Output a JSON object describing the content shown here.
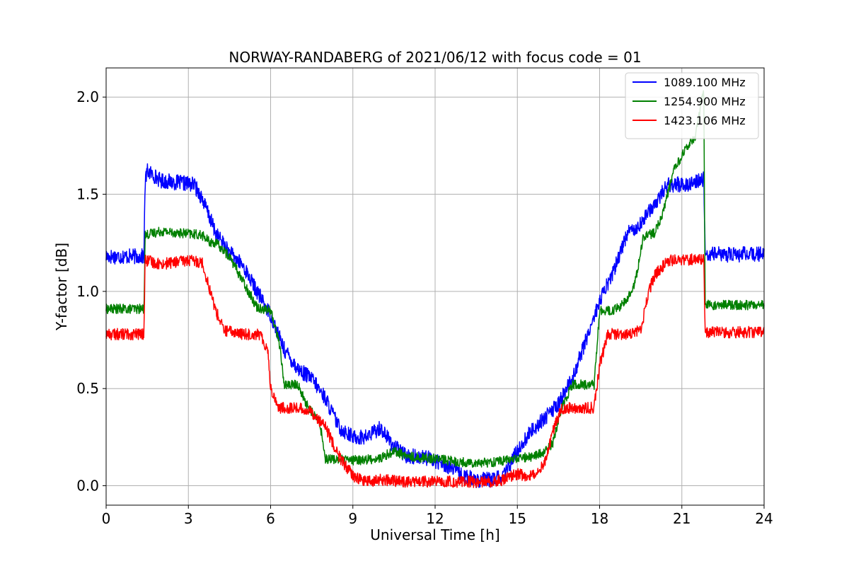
{
  "chart_data": {
    "type": "line",
    "title": "NORWAY-RANDABERG of 2021/06/12 with focus code = 01",
    "xlabel": "Universal Time [h]",
    "ylabel": "Y-factor [dB]",
    "xlim": [
      0,
      24
    ],
    "ylim": [
      -0.1,
      2.15
    ],
    "xticks": [
      0,
      3,
      6,
      9,
      12,
      15,
      18,
      21,
      24
    ],
    "xtick_labels": [
      "0",
      "3",
      "6",
      "9",
      "12",
      "15",
      "18",
      "21",
      "24"
    ],
    "yticks": [
      0.0,
      0.5,
      1.0,
      1.5,
      2.0
    ],
    "ytick_labels": [
      "0.0",
      "0.5",
      "1.0",
      "1.5",
      "2.0"
    ],
    "grid": true,
    "legend_position": "top-right",
    "series": [
      {
        "name": "1089.100 MHz",
        "color": "#0000ff",
        "noise": 0.04,
        "points": [
          [
            0,
            1.18
          ],
          [
            1.38,
            1.18
          ],
          [
            1.42,
            1.56
          ],
          [
            1.5,
            1.62
          ],
          [
            2.0,
            1.57
          ],
          [
            3.2,
            1.55
          ],
          [
            3.5,
            1.48
          ],
          [
            4.0,
            1.3
          ],
          [
            4.5,
            1.2
          ],
          [
            5.0,
            1.13
          ],
          [
            5.5,
            1.0
          ],
          [
            6.0,
            0.88
          ],
          [
            6.5,
            0.7
          ],
          [
            7.0,
            0.6
          ],
          [
            7.5,
            0.55
          ],
          [
            8.0,
            0.45
          ],
          [
            8.5,
            0.3
          ],
          [
            9.0,
            0.25
          ],
          [
            9.5,
            0.25
          ],
          [
            10.0,
            0.3
          ],
          [
            10.5,
            0.2
          ],
          [
            11.0,
            0.15
          ],
          [
            11.5,
            0.15
          ],
          [
            12.0,
            0.13
          ],
          [
            12.5,
            0.1
          ],
          [
            13.0,
            0.05
          ],
          [
            13.5,
            0.03
          ],
          [
            14.0,
            0.03
          ],
          [
            14.5,
            0.05
          ],
          [
            15.0,
            0.18
          ],
          [
            15.5,
            0.28
          ],
          [
            16.0,
            0.35
          ],
          [
            16.5,
            0.42
          ],
          [
            17.0,
            0.55
          ],
          [
            17.5,
            0.75
          ],
          [
            18.0,
            0.95
          ],
          [
            18.5,
            1.1
          ],
          [
            19.0,
            1.3
          ],
          [
            19.5,
            1.35
          ],
          [
            20.0,
            1.45
          ],
          [
            20.5,
            1.55
          ],
          [
            21.0,
            1.55
          ],
          [
            21.5,
            1.56
          ],
          [
            21.8,
            1.58
          ],
          [
            21.85,
            1.19
          ],
          [
            22.0,
            1.19
          ],
          [
            24.0,
            1.19
          ]
        ]
      },
      {
        "name": "1254.900 MHz",
        "color": "#008000",
        "noise": 0.025,
        "points": [
          [
            0,
            0.91
          ],
          [
            1.38,
            0.91
          ],
          [
            1.42,
            1.29
          ],
          [
            2.0,
            1.31
          ],
          [
            3.5,
            1.29
          ],
          [
            3.8,
            1.25
          ],
          [
            4.0,
            1.25
          ],
          [
            4.5,
            1.18
          ],
          [
            5.0,
            1.05
          ],
          [
            5.5,
            0.92
          ],
          [
            6.0,
            0.9
          ],
          [
            6.3,
            0.75
          ],
          [
            6.5,
            0.52
          ],
          [
            7.0,
            0.52
          ],
          [
            7.3,
            0.42
          ],
          [
            7.8,
            0.32
          ],
          [
            8.0,
            0.14
          ],
          [
            9.0,
            0.13
          ],
          [
            10.0,
            0.14
          ],
          [
            10.5,
            0.18
          ],
          [
            11.0,
            0.15
          ],
          [
            12.0,
            0.14
          ],
          [
            13.0,
            0.12
          ],
          [
            14.0,
            0.12
          ],
          [
            14.5,
            0.13
          ],
          [
            15.0,
            0.14
          ],
          [
            15.5,
            0.15
          ],
          [
            16.0,
            0.17
          ],
          [
            16.3,
            0.22
          ],
          [
            16.6,
            0.4
          ],
          [
            17.0,
            0.52
          ],
          [
            17.8,
            0.52
          ],
          [
            18.0,
            0.9
          ],
          [
            18.5,
            0.9
          ],
          [
            19.0,
            0.95
          ],
          [
            19.3,
            1.05
          ],
          [
            19.6,
            1.28
          ],
          [
            20.0,
            1.3
          ],
          [
            20.3,
            1.4
          ],
          [
            20.7,
            1.62
          ],
          [
            21.0,
            1.7
          ],
          [
            21.5,
            1.8
          ],
          [
            21.7,
            1.97
          ],
          [
            21.8,
            2.02
          ],
          [
            21.85,
            0.93
          ],
          [
            22.0,
            0.93
          ],
          [
            24.0,
            0.93
          ]
        ]
      },
      {
        "name": "1423.106 MHz",
        "color": "#ff0000",
        "noise": 0.03,
        "points": [
          [
            0,
            0.78
          ],
          [
            1.38,
            0.78
          ],
          [
            1.42,
            1.16
          ],
          [
            2.0,
            1.14
          ],
          [
            3.0,
            1.16
          ],
          [
            3.5,
            1.15
          ],
          [
            3.8,
            1.0
          ],
          [
            4.0,
            0.9
          ],
          [
            4.3,
            0.8
          ],
          [
            5.0,
            0.78
          ],
          [
            5.6,
            0.78
          ],
          [
            5.9,
            0.7
          ],
          [
            6.0,
            0.5
          ],
          [
            6.3,
            0.4
          ],
          [
            7.0,
            0.4
          ],
          [
            7.5,
            0.38
          ],
          [
            8.0,
            0.3
          ],
          [
            8.5,
            0.15
          ],
          [
            9.0,
            0.05
          ],
          [
            9.5,
            0.02
          ],
          [
            10.0,
            0.03
          ],
          [
            11.0,
            0.02
          ],
          [
            12.0,
            0.02
          ],
          [
            13.0,
            0.02
          ],
          [
            14.0,
            0.02
          ],
          [
            14.5,
            0.03
          ],
          [
            15.0,
            0.06
          ],
          [
            15.5,
            0.05
          ],
          [
            16.0,
            0.12
          ],
          [
            16.3,
            0.28
          ],
          [
            16.6,
            0.4
          ],
          [
            17.0,
            0.4
          ],
          [
            17.8,
            0.4
          ],
          [
            18.0,
            0.62
          ],
          [
            18.3,
            0.78
          ],
          [
            19.0,
            0.78
          ],
          [
            19.5,
            0.8
          ],
          [
            19.8,
            1.0
          ],
          [
            20.0,
            1.08
          ],
          [
            20.5,
            1.16
          ],
          [
            21.0,
            1.16
          ],
          [
            21.8,
            1.17
          ],
          [
            21.85,
            0.78
          ],
          [
            22.0,
            0.79
          ],
          [
            24.0,
            0.79
          ]
        ]
      }
    ]
  }
}
